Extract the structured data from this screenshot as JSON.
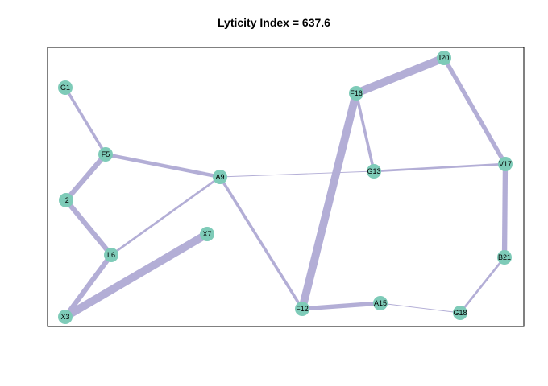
{
  "title": "Lyticity Index = 637.6",
  "colors": {
    "edge": "#b3aed6",
    "node": "#7ecbb8",
    "frame": "#000000"
  },
  "nodes": [
    {
      "id": "G1",
      "label": "G1"
    },
    {
      "id": "F5",
      "label": "F5"
    },
    {
      "id": "I2",
      "label": "I2"
    },
    {
      "id": "L6",
      "label": "L6"
    },
    {
      "id": "X3",
      "label": "X3"
    },
    {
      "id": "X7",
      "label": "X7"
    },
    {
      "id": "A9",
      "label": "A9"
    },
    {
      "id": "F16",
      "label": "F16"
    },
    {
      "id": "I20",
      "label": "I20"
    },
    {
      "id": "G13",
      "label": "G13"
    },
    {
      "id": "V17",
      "label": "V17"
    },
    {
      "id": "B21",
      "label": "B21"
    },
    {
      "id": "F12",
      "label": "F12"
    },
    {
      "id": "A15",
      "label": "A15"
    },
    {
      "id": "G18",
      "label": "G18"
    }
  ],
  "edges": [
    {
      "source": "G1",
      "target": "F5",
      "weight": 4
    },
    {
      "source": "F5",
      "target": "I2",
      "weight": 7
    },
    {
      "source": "F5",
      "target": "A9",
      "weight": 5
    },
    {
      "source": "I2",
      "target": "L6",
      "weight": 7
    },
    {
      "source": "L6",
      "target": "A9",
      "weight": 3
    },
    {
      "source": "L6",
      "target": "X3",
      "weight": 7
    },
    {
      "source": "X3",
      "target": "X7",
      "weight": 11
    },
    {
      "source": "A9",
      "target": "G13",
      "weight": 1
    },
    {
      "source": "A9",
      "target": "F12",
      "weight": 4
    },
    {
      "source": "F16",
      "target": "F12",
      "weight": 11
    },
    {
      "source": "F16",
      "target": "I20",
      "weight": 11
    },
    {
      "source": "F16",
      "target": "G13",
      "weight": 4
    },
    {
      "source": "G13",
      "target": "V17",
      "weight": 3
    },
    {
      "source": "I20",
      "target": "V17",
      "weight": 6
    },
    {
      "source": "V17",
      "target": "B21",
      "weight": 7
    },
    {
      "source": "B21",
      "target": "G18",
      "weight": 3
    },
    {
      "source": "F12",
      "target": "A15",
      "weight": 6
    },
    {
      "source": "A15",
      "target": "G18",
      "weight": 1
    }
  ]
}
